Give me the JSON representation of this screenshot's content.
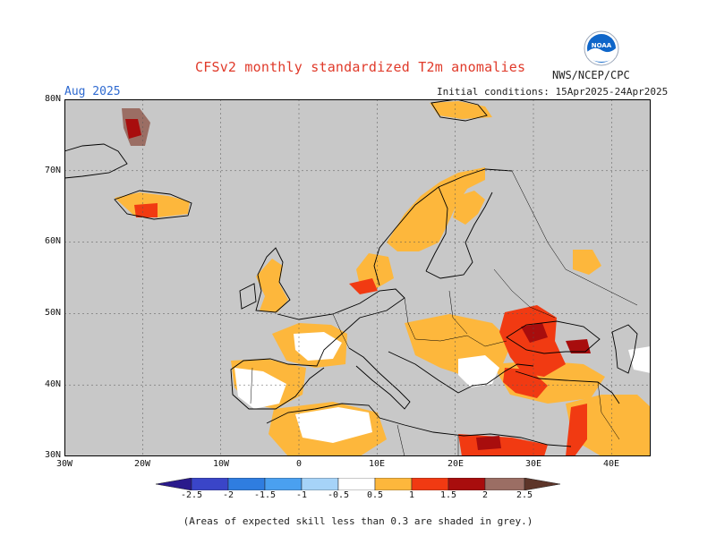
{
  "header": {
    "title": "CFSv2 monthly standardized T2m anomalies",
    "month": "Aug 2025",
    "initial_conditions": "Initial conditions: 15Apr2025-24Apr2025",
    "agency": "NWS/NCEP/CPC",
    "logo_text": "NOAA"
  },
  "map": {
    "region": "Europe",
    "lat_range": [
      30,
      80
    ],
    "lon_range": [
      -30,
      45
    ],
    "lat_labels": [
      "80N",
      "70N",
      "60N",
      "50N",
      "40N",
      "30N"
    ],
    "lon_labels": [
      "30W",
      "20W",
      "10W",
      "0",
      "10E",
      "20E",
      "30E",
      "40E"
    ],
    "grey_color": "#c8c8c8",
    "grey_meaning": "skill below 0.3"
  },
  "legend": {
    "labels": [
      "-2.5",
      "-2",
      "-1.5",
      "-1",
      "-0.5",
      "0.5",
      "1",
      "1.5",
      "2",
      "2.5"
    ],
    "colors": [
      "#2a1a8c",
      "#3a45c8",
      "#2f7de0",
      "#4aa0f0",
      "#a6d3f8",
      "#ffffff",
      "#fdb73c",
      "#f13a12",
      "#a80d0d",
      "#9b6e64",
      "#5d3529"
    ]
  },
  "footnote": "(Areas of expected skill less than 0.3 are shaded in grey.)"
}
